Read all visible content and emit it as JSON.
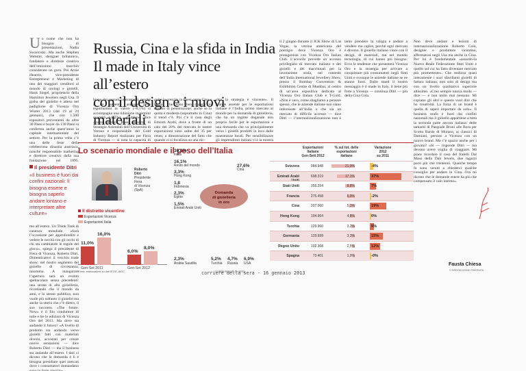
{
  "article": {
    "headline_lines": [
      "Russia, Cina e la sfida in India",
      "Il made in Italy vince all’estero",
      "con il design e i nuovi materiali"
    ],
    "col1_dropcap": "U",
    "col1_text": "n nome che non ha bisogno di presentazioni, Nadia Swarovski. Ma anche Stephen Webster, designer britannico, fondatore e direttore creativo dell’omonimo marchio considerato un guru. Poi Arnie Hearrin, vice-presidente Entrepreneur e Marketing di uno dei maggiori venditori al mondo di orologi e gioielli, Hank Siegel, proprietario della Hamilton Jewelers negli Usa. Il gotha del gioiello è atteso nel padiglione di Vicenza Oro Winter 2013 (dal 19 al 24 gennaio), che con 1.500 espositori provenienti da oltre 30 Paesi e buyer da 130 Paesi si conferma anche quest’anno la capitale internazionale del settore. Per la prima volta c’è una delle feste della celeberrima dinastia austriaca, nonché responsabile marketing e direttore creativo dalla sua fondazione nel 1895, parteciperà personalmente al Salone internazionale e lo fa prendendo parte all’Opening Summit «The Future. Now. New Perspectives in Jewellery».",
    "col1_bottom_text": "mo all’estero. Un Think Tank di caratura mondiale. «Sarà l’occasione per approfondire e vedere le novità con gli occhi di chi sta cambiando le regole del gioco», spiega il presidente di Fiera di Vicenza, Roberto Ditri. Dimenticatevi il vecchio trade show: nel nostro segmento del gioiello di circostanza, insomma. A inaugurare l’apertura sarà un evento spettacolare senza precedenti: una serata di alta gioielleria, ricordando che il mondo da anni, e lo stesso pubblico, non vuole più soltanto il gioiello ma anche la storia che c’è dietro, il suo racconto. «The future. Now» è il filo conduttore di tutte e tre le edizioni di Vicenza Oro del 2013. Ma dove sta andando il futuro? «A livello di prodotto sta andando verso gioielli fatti con materiali diversi, accostati per creare nuove sensazioni — dice Roberto Ditri — ma il business sta andando all’estero. I dati ci dicono che la domanda è lì e bisogna presidiare quei mercati dove i consumatori domandano sono in forte crescita».",
    "pullquote_title": "Il presidente Ditri",
    "pullquote_text": "«Il business è fuori dai confini nazionali: lì bisogna essere e bisogna saperlo andare lontano e interpretare altre culture»",
    "col_a_text": "biano dai segnali contrastanti, perché a un aumento annuale delle esportazioni in valore (+8,1%) si accompagna una riduzione in termini quantità (-8,7%). «Dubbio», dice Andrea Bettela Rossi, docente di Strategie Aziendali dell’Università di Verona e responsabile del Gold Industry Report realizzato per Fiera di Vicenza — si nota la capacità di se-",
    "col_b_text": "guire la crescita in Paesi come Cina e Russia che sono ben coperti in termini di penetrazione; anche se la quota è modesta (soprattutto in Cina) il trend c’è. Poi c’è il caso degli Emirati Arabi, dove a fronte di un calo del 20% del mercato le nostre esportazioni sono salite del 35 per cento, a dimostrazione del fatto che quando ci si focalizza su una nic-",
    "col_c_text": "chia la strategia è vincente». Il grande assente per le esportazioni italiane è l’India, primo mercato al mondo per la domanda di gioielleria, che ha un regime doganale non proprio facile per le esportazioni e una domanda che va principalmente verso i gioielli prodotti in loco dalle maestranze locali. Per sensibilizzare gli imprenditori italiani vi è la mostra Vicenza Oro in India Jewellery Show a Mumbai «gioiello",
    "col_d_text": "il 2 giugno durante il JCK Show di Las Vegas, la vetrina americana del prestigio dove Vicenza Oro è protagonista con Vicenza Oro Italian Club. L’accordo prevede un accesso privilegiato di mercato italiano e dei gioielli e dei macchinari per la lavorazione orafa, nel contesto dell’India International Jewellery Show, presso il Bombay Convention & Exhibition Centre di Mumbai, al centro di un’area espositiva dedicata al Vicenza Oro Italian Club e T-Gold. «Non è vero, come sbagliamo a pensare spesso, che le aziende italiane non siano interessate all’India o che sia un mercato di difficile accesso — dice Ditri — l’internazionalizzazione non è sol-",
    "col_e_text": "tanto prendere la valigia e andare a vendere ma capire, perché ogni mercato è diverso. Il gioiello italiano vince con il design, di materiali, ma nel mondo tecnologia, di cui hanno più bisogno. Ecco le tendenze che presenterà Vicenza Oro e la strategia per arrivare a conquistare più consumatori negli Stati Uniti e ovunque le aziende italiane se ne stanno fuori. Dallo stand il nostro messaggio è il made in Italy, il bene più forte a Vicenza — continua Ditri — più della Cina Cola.",
    "col_f_text": "Non deve andare e lezioni di internazionalizzazione Roberto Coin, designer e produttore vicentino, affermatosi negli Usa ma anche in Cina. Per lui è fondamentale «assurdo-la Nuova Reale Federazione Stati Uniti e quello sul cui ha fatto diventare mercato più promettente». Che realizza quasi interamente i suoi sfavillanti gioielli di fattura italiana, non solo di design ma con un livello qualitativo superiore altissimo. «Creo sempre nuova moda — dice — e non imito mai nessuno. Mi copiano gli altri e questo vuol dire che ho creatività. La forza di un brand è quella di saperi importare da solo». Il business orafo è fuori dai confini nazionali ma il gioiello appartiene a tutta la seconda parte ancora italiana: delle tamariti di Pasquale Bruni alle Bora per Scotto Bardo di Murano, ai classici di Damiani, persino a Vicenza con un nuovo brand. Ma c’è spazio anche per i giovani? «Sì — risponde Ditri — ma devono avere voglia di viaggiare. Mi piace ricordare il caso del fratelli Dal Maso della Dali Jewels, due ragazzi poco più che trentenni. Qualche tempo fa sono venuti a chiederci qualche consiglio per andare in Cina. Ora mi dicono che le domande estere ha più che compensato il calo interno».",
    "signature": "Fausta Chiesa",
    "signature_note": "© RIPRODUZIONE RISERVATA"
  },
  "infographic": {
    "title": "Lo scenario mondiale e il peso dell’Italia",
    "person": {
      "name_lines": [
        "Roberto",
        "Ditri"
      ],
      "role_lines": [
        "Presidente",
        "Fiera",
        "di Vicenza",
        "(SpA)"
      ]
    },
    "distretto_title": "Il distretto vicentino",
    "legend": [
      {
        "label": "Esportazioni Vicenza",
        "color": "#c8433f"
      },
      {
        "label": "Esportazioni Italia",
        "color": "#e6b0ab"
      }
    ],
    "destinations": [
      {
        "pct": "30,3%",
        "country": "India"
      },
      {
        "pct": "16,1%",
        "country": "Resto del mondo"
      },
      {
        "pct": "3,3%",
        "country": "Hong Kong"
      },
      {
        "pct": "1,8",
        "country": "Indonesia"
      },
      {
        "pct": "2,3%",
        "country": "Egitto"
      },
      {
        "pct": "1,5%",
        "country": "Emirati Arabi Uniti"
      },
      {
        "pct": "2,3%",
        "country": "Arabia Saudita"
      }
    ],
    "right_destinations": [
      {
        "pct": "27,6%",
        "country": "Cina"
      }
    ],
    "bottom_destinations": [
      {
        "pct": "5,2%",
        "country": "Turchia"
      },
      {
        "pct": "4,7%",
        "country": "Russia"
      },
      {
        "pct": "6,9%",
        "country": "USA"
      }
    ],
    "demand_lines": [
      "Domanda",
      "di gioielleria",
      "in oro"
    ],
    "periods": [
      "Gen-Set 2011",
      "Gen-Set 2012"
    ],
    "source_left": "Fonte: elaborazione su dati ISTAT, WGC",
    "source_right": "CORRIERE DELLA SERA",
    "table_headers": {
      "export": [
        "Esportazioni",
        "Italiane",
        "Gen-Sett 2012"
      ],
      "share": [
        "% sul tot. delle",
        "esportazioni",
        "italiane"
      ],
      "variation": [
        "Variazione",
        "2012",
        "su 2011"
      ]
    },
    "table_rows": [
      {
        "country": "Svizzera",
        "export": "984.948",
        "share": "21,9%",
        "variation": "-4%",
        "share_value": 21.9,
        "var_value": -4
      },
      {
        "country": "Emirati Arabi Uniti",
        "export": "698.319",
        "share": "17,1%",
        "variation": "37%",
        "share_value": 17.1,
        "var_value": 37
      },
      {
        "country": "Stati Uniti",
        "export": "355.254",
        "share": "8,8%",
        "variation": "7%",
        "share_value": 8.8,
        "var_value": 7
      },
      {
        "country": "Francia",
        "export": "275.458",
        "share": "6,9%",
        "variation": "-2%",
        "share_value": 6.9,
        "var_value": -2
      },
      {
        "country": "Cina",
        "export": "207.060",
        "share": "5,1%",
        "variation": "19%",
        "share_value": 5.1,
        "var_value": 19
      },
      {
        "country": "Hong Kong",
        "export": "194.964",
        "share": "4,8%",
        "variation": "0%",
        "share_value": 4.8,
        "var_value": 0
      },
      {
        "country": "Turchia",
        "export": "129.960",
        "share": "3,2%",
        "variation": "5%",
        "share_value": 3.2,
        "var_value": 5
      },
      {
        "country": "Germania",
        "export": "129.999",
        "share": "3,2%",
        "variation": "15%",
        "share_value": 3.2,
        "var_value": 15
      },
      {
        "country": "Regno Unito",
        "export": "102.368",
        "share": "2,5%",
        "variation": "12%",
        "share_value": 2.5,
        "var_value": 12
      },
      {
        "country": "Spagna",
        "export": "73.401",
        "share": "1,9%",
        "variation": "-0%",
        "share_value": 1.9,
        "var_value": 0
      }
    ]
  },
  "chart_data": {
    "type": "bar",
    "categories": [
      "Gen-Set 2011",
      "Gen-Set 2012"
    ],
    "series": [
      {
        "name": "Esportazioni Vicenza",
        "values": [
          11.0,
          6.0
        ]
      },
      {
        "name": "Esportazioni Italia",
        "values": [
          16.0,
          8.0
        ]
      }
    ],
    "data_labels": [
      "11,0%",
      "16,0%",
      "6,0%",
      "8,0%"
    ],
    "ylim": [
      0,
      20
    ],
    "colors": {
      "vicenza": "#c8433f",
      "italia": "#e6b0ab",
      "positive": "#e06a4e",
      "negative": "#f2c44a"
    }
  },
  "caption": "corriere della sera - 16 gennaio 2013"
}
